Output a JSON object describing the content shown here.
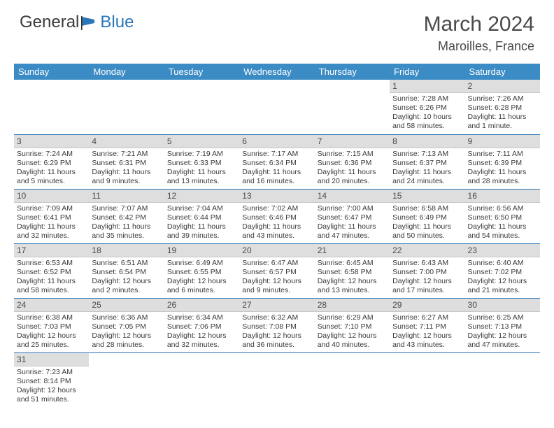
{
  "brand": {
    "part1": "General",
    "part2": "Blue"
  },
  "title": "March 2024",
  "location": "Maroilles, France",
  "colors": {
    "header_bg": "#3b8bc4",
    "header_fg": "#ffffff",
    "daynum_bg": "#dedede",
    "row_border": "#2b77b8",
    "text": "#3a3a3a",
    "brand_blue": "#2b77b8"
  },
  "weekdays": [
    "Sunday",
    "Monday",
    "Tuesday",
    "Wednesday",
    "Thursday",
    "Friday",
    "Saturday"
  ],
  "weeks": [
    [
      null,
      null,
      null,
      null,
      null,
      {
        "n": "1",
        "sr": "Sunrise: 7:28 AM",
        "ss": "Sunset: 6:26 PM",
        "dl": "Daylight: 10 hours and 58 minutes."
      },
      {
        "n": "2",
        "sr": "Sunrise: 7:26 AM",
        "ss": "Sunset: 6:28 PM",
        "dl": "Daylight: 11 hours and 1 minute."
      }
    ],
    [
      {
        "n": "3",
        "sr": "Sunrise: 7:24 AM",
        "ss": "Sunset: 6:29 PM",
        "dl": "Daylight: 11 hours and 5 minutes."
      },
      {
        "n": "4",
        "sr": "Sunrise: 7:21 AM",
        "ss": "Sunset: 6:31 PM",
        "dl": "Daylight: 11 hours and 9 minutes."
      },
      {
        "n": "5",
        "sr": "Sunrise: 7:19 AM",
        "ss": "Sunset: 6:33 PM",
        "dl": "Daylight: 11 hours and 13 minutes."
      },
      {
        "n": "6",
        "sr": "Sunrise: 7:17 AM",
        "ss": "Sunset: 6:34 PM",
        "dl": "Daylight: 11 hours and 16 minutes."
      },
      {
        "n": "7",
        "sr": "Sunrise: 7:15 AM",
        "ss": "Sunset: 6:36 PM",
        "dl": "Daylight: 11 hours and 20 minutes."
      },
      {
        "n": "8",
        "sr": "Sunrise: 7:13 AM",
        "ss": "Sunset: 6:37 PM",
        "dl": "Daylight: 11 hours and 24 minutes."
      },
      {
        "n": "9",
        "sr": "Sunrise: 7:11 AM",
        "ss": "Sunset: 6:39 PM",
        "dl": "Daylight: 11 hours and 28 minutes."
      }
    ],
    [
      {
        "n": "10",
        "sr": "Sunrise: 7:09 AM",
        "ss": "Sunset: 6:41 PM",
        "dl": "Daylight: 11 hours and 32 minutes."
      },
      {
        "n": "11",
        "sr": "Sunrise: 7:07 AM",
        "ss": "Sunset: 6:42 PM",
        "dl": "Daylight: 11 hours and 35 minutes."
      },
      {
        "n": "12",
        "sr": "Sunrise: 7:04 AM",
        "ss": "Sunset: 6:44 PM",
        "dl": "Daylight: 11 hours and 39 minutes."
      },
      {
        "n": "13",
        "sr": "Sunrise: 7:02 AM",
        "ss": "Sunset: 6:46 PM",
        "dl": "Daylight: 11 hours and 43 minutes."
      },
      {
        "n": "14",
        "sr": "Sunrise: 7:00 AM",
        "ss": "Sunset: 6:47 PM",
        "dl": "Daylight: 11 hours and 47 minutes."
      },
      {
        "n": "15",
        "sr": "Sunrise: 6:58 AM",
        "ss": "Sunset: 6:49 PM",
        "dl": "Daylight: 11 hours and 50 minutes."
      },
      {
        "n": "16",
        "sr": "Sunrise: 6:56 AM",
        "ss": "Sunset: 6:50 PM",
        "dl": "Daylight: 11 hours and 54 minutes."
      }
    ],
    [
      {
        "n": "17",
        "sr": "Sunrise: 6:53 AM",
        "ss": "Sunset: 6:52 PM",
        "dl": "Daylight: 11 hours and 58 minutes."
      },
      {
        "n": "18",
        "sr": "Sunrise: 6:51 AM",
        "ss": "Sunset: 6:54 PM",
        "dl": "Daylight: 12 hours and 2 minutes."
      },
      {
        "n": "19",
        "sr": "Sunrise: 6:49 AM",
        "ss": "Sunset: 6:55 PM",
        "dl": "Daylight: 12 hours and 6 minutes."
      },
      {
        "n": "20",
        "sr": "Sunrise: 6:47 AM",
        "ss": "Sunset: 6:57 PM",
        "dl": "Daylight: 12 hours and 9 minutes."
      },
      {
        "n": "21",
        "sr": "Sunrise: 6:45 AM",
        "ss": "Sunset: 6:58 PM",
        "dl": "Daylight: 12 hours and 13 minutes."
      },
      {
        "n": "22",
        "sr": "Sunrise: 6:43 AM",
        "ss": "Sunset: 7:00 PM",
        "dl": "Daylight: 12 hours and 17 minutes."
      },
      {
        "n": "23",
        "sr": "Sunrise: 6:40 AM",
        "ss": "Sunset: 7:02 PM",
        "dl": "Daylight: 12 hours and 21 minutes."
      }
    ],
    [
      {
        "n": "24",
        "sr": "Sunrise: 6:38 AM",
        "ss": "Sunset: 7:03 PM",
        "dl": "Daylight: 12 hours and 25 minutes."
      },
      {
        "n": "25",
        "sr": "Sunrise: 6:36 AM",
        "ss": "Sunset: 7:05 PM",
        "dl": "Daylight: 12 hours and 28 minutes."
      },
      {
        "n": "26",
        "sr": "Sunrise: 6:34 AM",
        "ss": "Sunset: 7:06 PM",
        "dl": "Daylight: 12 hours and 32 minutes."
      },
      {
        "n": "27",
        "sr": "Sunrise: 6:32 AM",
        "ss": "Sunset: 7:08 PM",
        "dl": "Daylight: 12 hours and 36 minutes."
      },
      {
        "n": "28",
        "sr": "Sunrise: 6:29 AM",
        "ss": "Sunset: 7:10 PM",
        "dl": "Daylight: 12 hours and 40 minutes."
      },
      {
        "n": "29",
        "sr": "Sunrise: 6:27 AM",
        "ss": "Sunset: 7:11 PM",
        "dl": "Daylight: 12 hours and 43 minutes."
      },
      {
        "n": "30",
        "sr": "Sunrise: 6:25 AM",
        "ss": "Sunset: 7:13 PM",
        "dl": "Daylight: 12 hours and 47 minutes."
      }
    ],
    [
      {
        "n": "31",
        "sr": "Sunrise: 7:23 AM",
        "ss": "Sunset: 8:14 PM",
        "dl": "Daylight: 12 hours and 51 minutes."
      },
      null,
      null,
      null,
      null,
      null,
      null
    ]
  ]
}
